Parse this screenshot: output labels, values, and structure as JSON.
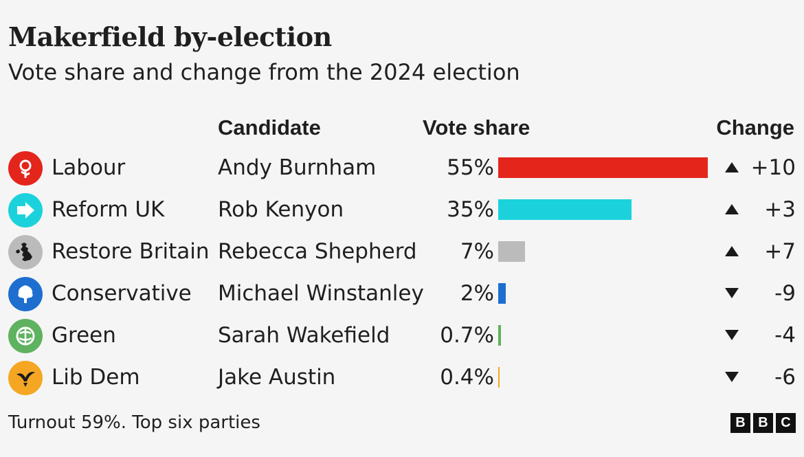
{
  "header": {
    "title": "Makerfield by-election",
    "subtitle": "Vote share and change from the 2024 election"
  },
  "columns": {
    "candidate": "Candidate",
    "vote_share": "Vote share",
    "change": "Change"
  },
  "chart_data": {
    "type": "bar",
    "categories": [
      "Labour",
      "Reform UK",
      "Restore Britain",
      "Conservative",
      "Green",
      "Lib Dem"
    ],
    "values": [
      55,
      35,
      7,
      2,
      0.7,
      0.4
    ],
    "xlim": [
      0,
      55
    ],
    "series": [
      {
        "values": [
          55,
          35,
          7,
          2,
          0.7,
          0.4
        ]
      }
    ],
    "rows": [
      {
        "party": "Labour",
        "candidate": "Andy Burnham",
        "share_label": "55%",
        "share": 55,
        "direction": "up",
        "change": "+10",
        "color": "#e4251c",
        "icon": "labour-rose-icon"
      },
      {
        "party": "Reform UK",
        "candidate": "Rob Kenyon",
        "share_label": "35%",
        "share": 35,
        "direction": "up",
        "change": "+3",
        "color": "#1bd2dc",
        "icon": "reform-arrow-icon"
      },
      {
        "party": "Restore Britain",
        "candidate": "Rebecca Shepherd",
        "share_label": "7%",
        "share": 7,
        "direction": "up",
        "change": "+7",
        "color": "#bbbbbb",
        "icon": "restore-britain-map-icon"
      },
      {
        "party": "Conservative",
        "candidate": "Michael Winstanley",
        "share_label": "2%",
        "share": 2,
        "direction": "down",
        "change": "-9",
        "color": "#1e6ecf",
        "icon": "conservative-tree-icon"
      },
      {
        "party": "Green",
        "candidate": "Sarah Wakefield",
        "share_label": "0.7%",
        "share": 0.7,
        "direction": "down",
        "change": "-4",
        "color": "#5fb25f",
        "icon": "green-globe-icon"
      },
      {
        "party": "Lib Dem",
        "candidate": "Jake Austin",
        "share_label": "0.4%",
        "share": 0.4,
        "direction": "down",
        "change": "-6",
        "color": "#f5a623",
        "icon": "libdem-bird-icon"
      }
    ]
  },
  "footer": {
    "note": "Turnout 59%. Top six parties",
    "logo_letters": [
      "B",
      "B",
      "C"
    ]
  }
}
